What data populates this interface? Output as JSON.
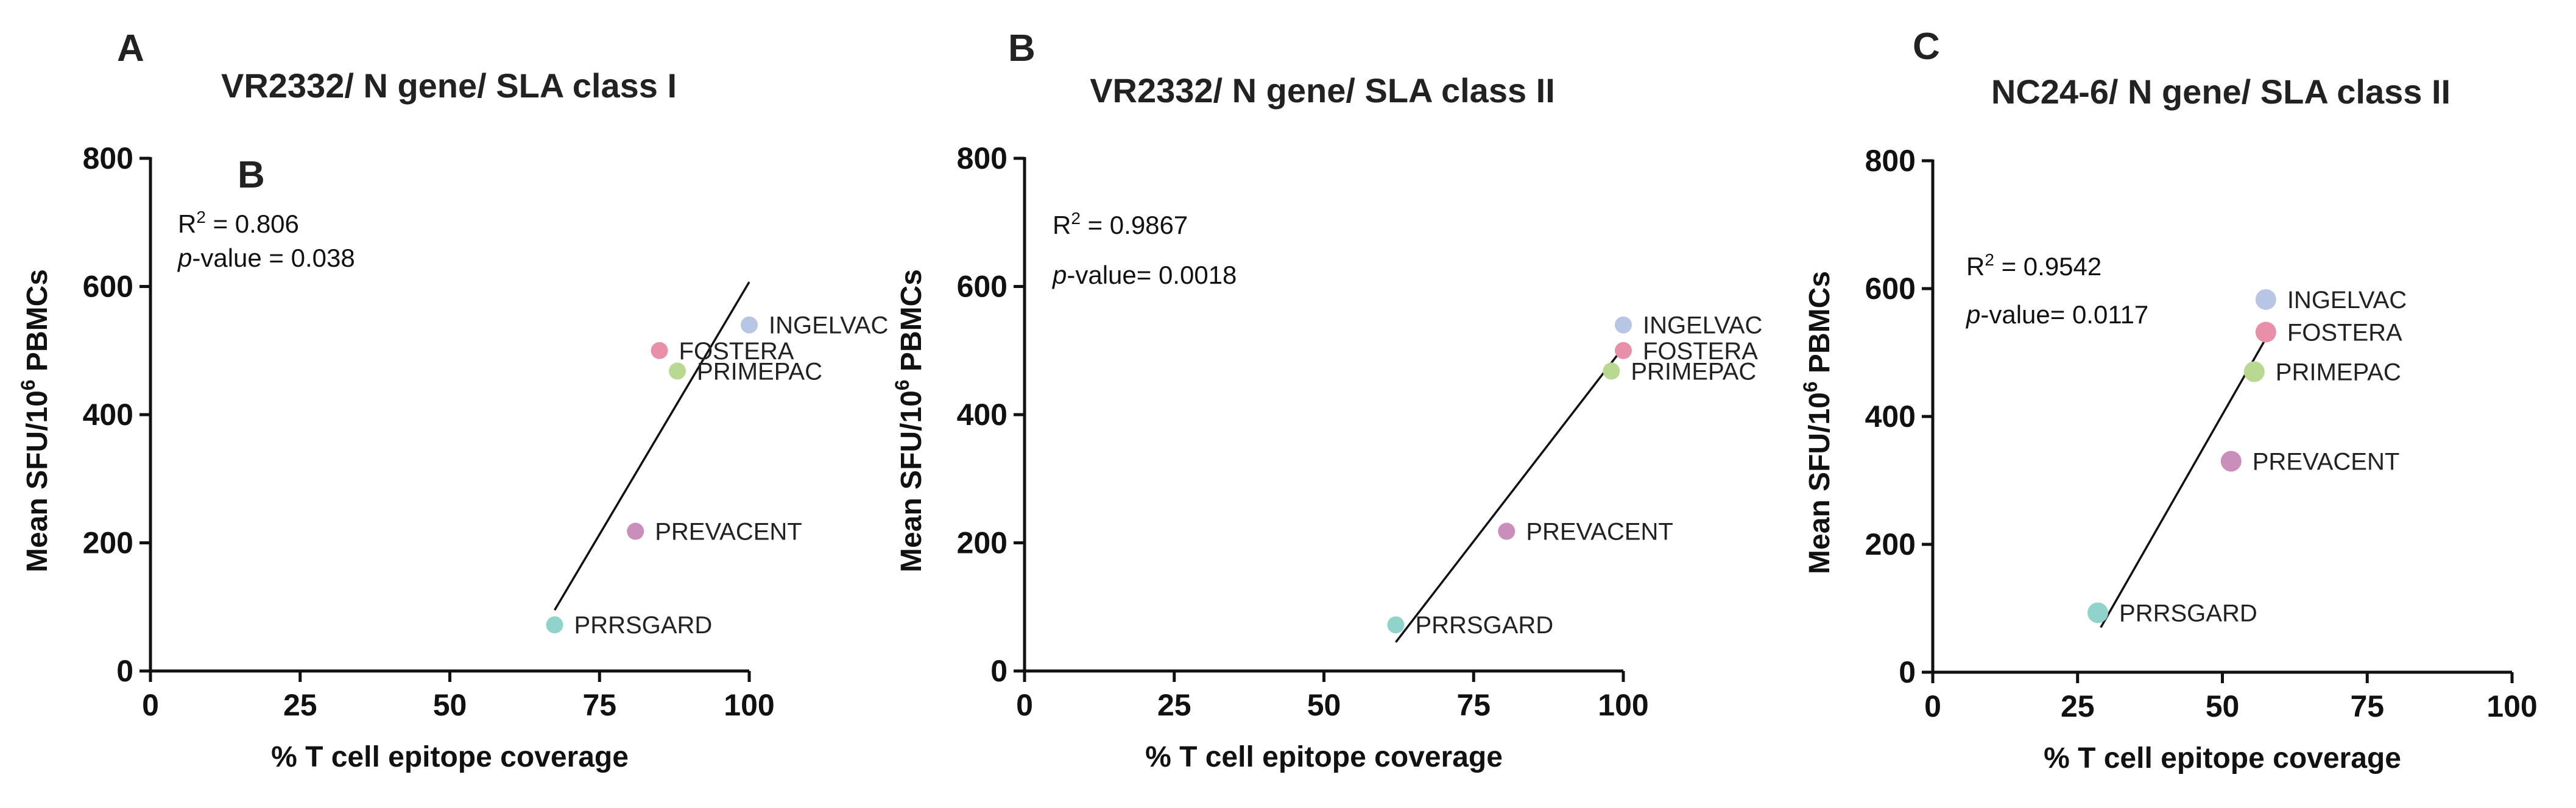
{
  "chart_data": [
    {
      "type": "scatter",
      "panel_label": "A",
      "inset_label": "B",
      "title": "VR2332/ N gene/ SLA class I",
      "xlabel": "% T cell epitope coverage",
      "ylabel_main": "Mean SFU/10",
      "ylabel_sup": "6",
      "ylabel_tail": " PBMCs",
      "xlim": [
        0,
        100
      ],
      "ylim": [
        0,
        800
      ],
      "xticks": [
        0,
        25,
        50,
        75,
        100
      ],
      "yticks": [
        0,
        200,
        400,
        600,
        800
      ],
      "r2_prefix": "R",
      "r2_sup": "2",
      "r2_value": " = 0.806",
      "p_prefix": "p",
      "p_value": "-value = 0.038",
      "points": [
        {
          "label": "INGELVAC",
          "x": 100,
          "y": 540,
          "color": "#b8c6e6"
        },
        {
          "label": "FOSTERA",
          "x": 85,
          "y": 500,
          "color": "#e890a8"
        },
        {
          "label": "PRIMEPAC",
          "x": 88,
          "y": 468,
          "color": "#b9d891"
        },
        {
          "label": "PREVACENT",
          "x": 81,
          "y": 218,
          "color": "#c98fba"
        },
        {
          "label": "PRRSGARD",
          "x": 67.5,
          "y": 72,
          "color": "#8fd3cb"
        }
      ],
      "fit_line": {
        "x": [
          67.5,
          100
        ],
        "y": [
          95,
          607
        ]
      }
    },
    {
      "type": "scatter",
      "panel_label": "B",
      "title": "VR2332/ N gene/ SLA class II",
      "xlabel": "% T cell epitope coverage",
      "ylabel_main": "Mean SFU/10",
      "ylabel_sup": "6",
      "ylabel_tail": " PBMCs",
      "xlim": [
        0,
        100
      ],
      "ylim": [
        0,
        800
      ],
      "xticks": [
        0,
        25,
        50,
        75,
        100
      ],
      "yticks": [
        0,
        200,
        400,
        600,
        800
      ],
      "r2_prefix": "R",
      "r2_sup": "2",
      "r2_value": " = 0.9867",
      "p_prefix": "p",
      "p_value": "-value= 0.0018",
      "points": [
        {
          "label": "INGELVAC",
          "x": 100,
          "y": 540,
          "color": "#b8c6e6"
        },
        {
          "label": "FOSTERA",
          "x": 100,
          "y": 500,
          "color": "#e890a8"
        },
        {
          "label": "PRIMEPAC",
          "x": 98,
          "y": 468,
          "color": "#b9d891"
        },
        {
          "label": "PREVACENT",
          "x": 80.5,
          "y": 218,
          "color": "#c98fba"
        },
        {
          "label": "PRRSGARD",
          "x": 62,
          "y": 72,
          "color": "#8fd3cb"
        }
      ],
      "fit_line": {
        "x": [
          62,
          100
        ],
        "y": [
          45,
          505
        ]
      }
    },
    {
      "type": "scatter",
      "panel_label": "C",
      "title": "NC24-6/ N gene/ SLA class II",
      "xlabel": "% T cell epitope coverage",
      "ylabel_main": "Mean SFU/10",
      "ylabel_sup": "6",
      "ylabel_tail": " PBMCs",
      "xlim": [
        0,
        100
      ],
      "ylim": [
        0,
        800
      ],
      "xticks": [
        0,
        25,
        50,
        75,
        100
      ],
      "yticks": [
        0,
        200,
        400,
        600,
        800
      ],
      "r2_prefix": "R",
      "r2_sup": "2",
      "r2_value": " = 0.9542",
      "p_prefix": "p",
      "p_value": "-value= 0.0117",
      "points": [
        {
          "label": "INGELVAC",
          "x": 57.5,
          "y": 583,
          "color": "#b8c6e6"
        },
        {
          "label": "FOSTERA",
          "x": 57.5,
          "y": 532,
          "color": "#e890a8"
        },
        {
          "label": "PRIMEPAC",
          "x": 55.5,
          "y": 470,
          "color": "#b9d891"
        },
        {
          "label": "PREVACENT",
          "x": 51.5,
          "y": 330,
          "color": "#c98fba"
        },
        {
          "label": "PRRSGARD",
          "x": 28.5,
          "y": 93,
          "color": "#8fd3cb"
        }
      ],
      "fit_line": {
        "x": [
          29,
          57.5
        ],
        "y": [
          70,
          522
        ]
      }
    }
  ]
}
